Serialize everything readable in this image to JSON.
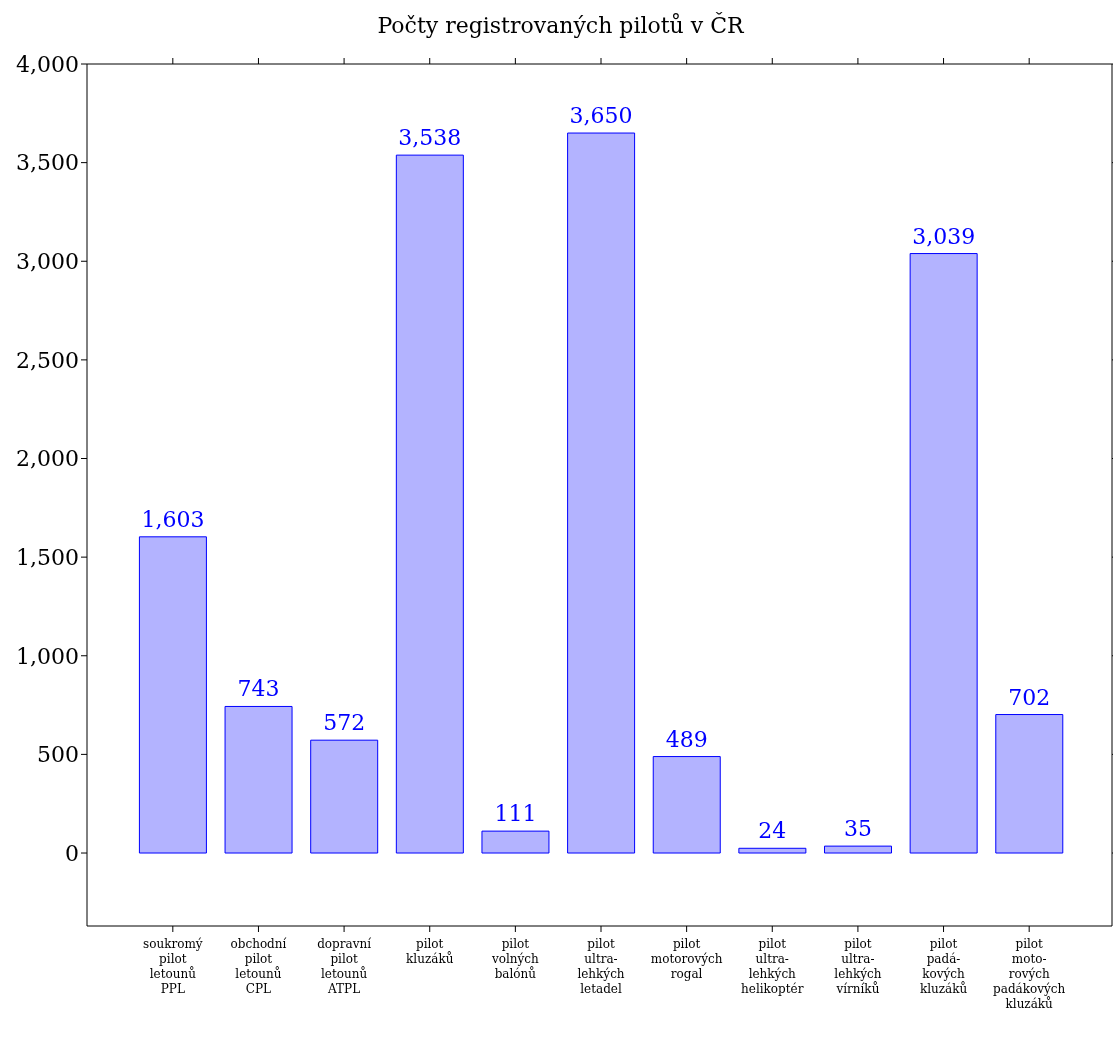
{
  "chart_data": {
    "type": "bar",
    "title": "Počty registrovaných pilotů v ČR",
    "categories": [
      "soukromý\npilot\nletounů\nPPL",
      "obchodní\npilot\nletounů\nCPL",
      "dopravní\npilot\nletounů\nATPL",
      "pilot\nkluzáků",
      "pilot\nvolných\nbalónů",
      "pilot\nultra-\nlehkých\nletadel",
      "pilot\nmotorových\nrogal",
      "pilot\nultra-\nlehkých\nhelikoptér",
      "pilot\nultra-\nlehkých\nvírníků",
      "pilot\npadá-\nkových\nkluzáků",
      "pilot\nmoto-\nrových\npadákových\nkluzáků"
    ],
    "series": [
      {
        "color": "#b3b3ff",
        "values": [
          1603,
          743,
          572,
          3538,
          111,
          3650,
          489,
          24,
          35,
          3039,
          702
        ],
        "value_labels": [
          "1,603",
          "743",
          "572",
          "3,538",
          "111",
          "3,650",
          "489",
          "24",
          "35",
          "3,039",
          "702"
        ]
      }
    ],
    "ylim": [
      -370,
      4000
    ],
    "yticks": [
      0,
      500,
      {
        "value": 1000,
        "label": "1,000"
      },
      {
        "value": 1500,
        "label": "1,500"
      },
      {
        "value": 2000,
        "label": "2,000"
      },
      {
        "value": 2500,
        "label": "2,500"
      },
      {
        "value": 3000,
        "label": "3,000"
      },
      {
        "value": 3500,
        "label": "3,500"
      },
      {
        "value": 4000,
        "label": "4,000"
      }
    ],
    "grid": false,
    "legend": false
  }
}
